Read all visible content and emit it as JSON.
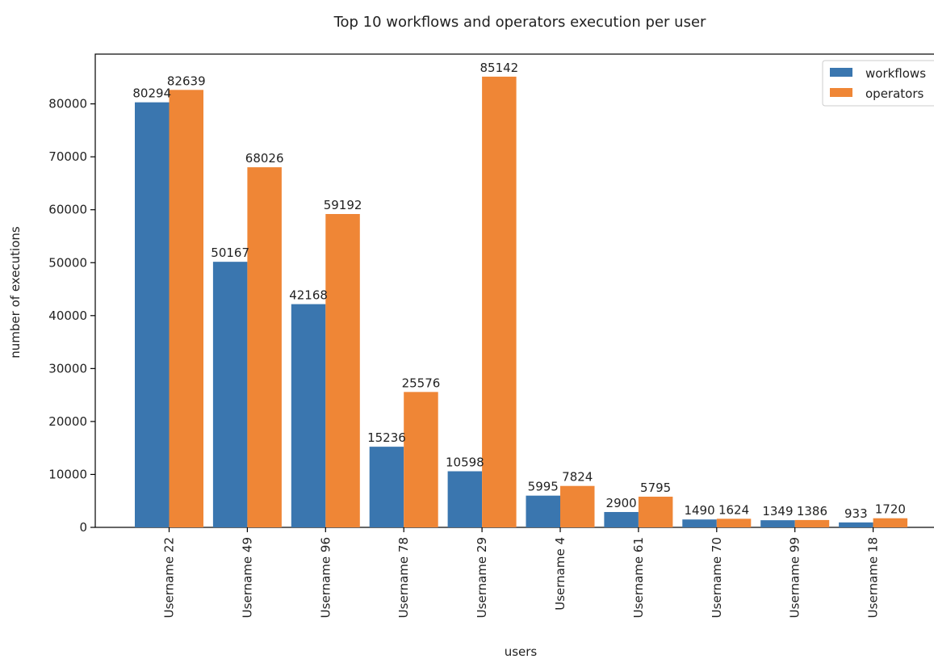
{
  "chart_data": {
    "type": "bar",
    "title": "Top 10 workflows and operators execution per user",
    "xlabel": "users",
    "ylabel": "number of executions",
    "categories": [
      "Username 22",
      "Username 49",
      "Username 96",
      "Username 78",
      "Username 29",
      "Username 4",
      "Username 61",
      "Username 70",
      "Username 99",
      "Username 18"
    ],
    "series": [
      {
        "name": "workflows",
        "color": "#3a76af",
        "values": [
          80294,
          50167,
          42168,
          15236,
          10598,
          5995,
          2900,
          1490,
          1349,
          933
        ]
      },
      {
        "name": "operators",
        "color": "#ef8636",
        "values": [
          82639,
          68026,
          59192,
          25576,
          85142,
          7824,
          5795,
          1624,
          1386,
          1720
        ]
      }
    ],
    "ylim": [
      0,
      89400
    ],
    "yticks": [
      0,
      10000,
      20000,
      30000,
      40000,
      50000,
      60000,
      70000,
      80000
    ],
    "grid": false,
    "legend_position": "top-right"
  }
}
